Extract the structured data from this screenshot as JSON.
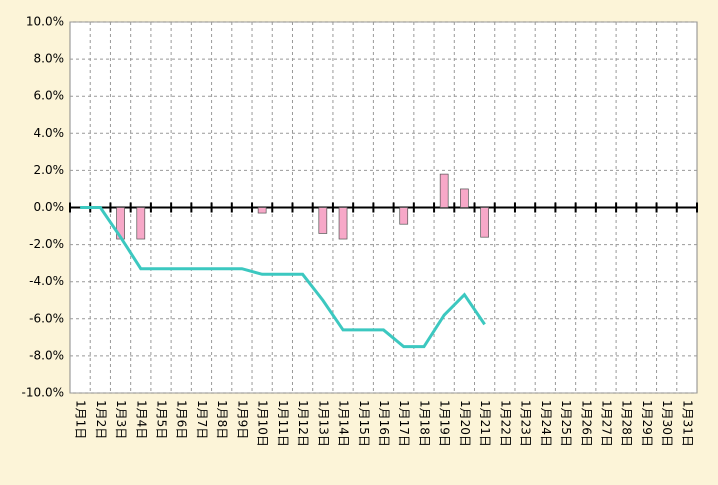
{
  "chart_data": {
    "type": "bar-line",
    "categories": [
      "1月1日",
      "1月2日",
      "1月3日",
      "1月4日",
      "1月5日",
      "1月6日",
      "1月7日",
      "1月8日",
      "1月9日",
      "1月10日",
      "1月11日",
      "1月12日",
      "1月13日",
      "1月14日",
      "1月15日",
      "1月16日",
      "1月17日",
      "1月18日",
      "1月19日",
      "1月20日",
      "1月21日",
      "1月22日",
      "1月23日",
      "1月24日",
      "1月25日",
      "1月26日",
      "1月27日",
      "1月28日",
      "1月29日",
      "1月30日",
      "1月31日"
    ],
    "series": [
      {
        "type": "bar",
        "color": "#f7a8c8",
        "values": [
          0,
          0,
          -1.7,
          -1.7,
          0,
          0,
          0,
          0,
          0,
          -0.3,
          0,
          0,
          -1.4,
          -1.7,
          0,
          0,
          -0.9,
          0,
          1.8,
          1.0,
          -1.6,
          null,
          null,
          null,
          null,
          null,
          null,
          null,
          null,
          null,
          null
        ]
      },
      {
        "type": "line",
        "color": "#3cc8c0",
        "values": [
          0,
          0,
          -1.6,
          -3.3,
          -3.3,
          -3.3,
          -3.3,
          -3.3,
          -3.3,
          -3.6,
          -3.6,
          -3.6,
          -5.0,
          -6.6,
          -6.6,
          -6.6,
          -7.5,
          -7.5,
          -5.8,
          -4.7,
          -6.3,
          null,
          null,
          null,
          null,
          null,
          null,
          null,
          null,
          null,
          null
        ]
      }
    ],
    "ylim": [
      -10,
      10
    ],
    "yticks": [
      {
        "value": -10,
        "label": "-10.0%"
      },
      {
        "value": -8,
        "label": "-8.0%"
      },
      {
        "value": -6,
        "label": "-6.0%"
      },
      {
        "value": -4,
        "label": "-4.0%"
      },
      {
        "value": -2,
        "label": "-2.0%"
      },
      {
        "value": 0,
        "label": "0.0%"
      },
      {
        "value": 2,
        "label": "2.0%"
      },
      {
        "value": 4,
        "label": "4.0%"
      },
      {
        "value": 6,
        "label": "6.0%"
      },
      {
        "value": 8,
        "label": "8.0%"
      },
      {
        "value": 10,
        "label": "10.0%"
      }
    ],
    "grid": true
  }
}
